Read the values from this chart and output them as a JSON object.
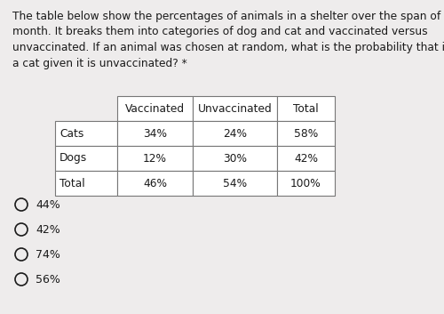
{
  "question_text_lines": [
    "The table below show the percentages of animals in a shelter over the span of a",
    "month. It breaks them into categories of dog and cat and vaccinated versus",
    "unvaccinated. If an animal was chosen at random, what is the probability that it is",
    "a cat given it is unvaccinated? *"
  ],
  "table_headers": [
    "",
    "Vaccinated",
    "Unvaccinated",
    "Total"
  ],
  "table_rows": [
    [
      "Cats",
      "34%",
      "24%",
      "58%"
    ],
    [
      "Dogs",
      "12%",
      "30%",
      "42%"
    ],
    [
      "Total",
      "46%",
      "54%",
      "100%"
    ]
  ],
  "answer_choices": [
    "44%",
    "42%",
    "74%",
    "56%"
  ],
  "bg_color": "#eeecec",
  "text_color": "#1a1a1a",
  "table_line_color": "#777777",
  "font_size_question": 8.8,
  "font_size_table": 8.8,
  "font_size_answers": 9.0
}
